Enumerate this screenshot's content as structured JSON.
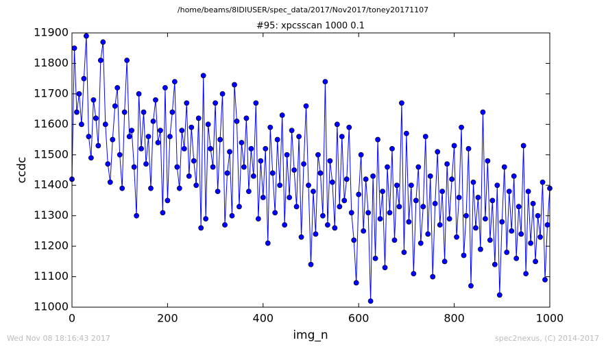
{
  "chart_data": {
    "type": "line",
    "suptitle": "/home/beams/8IDIUSER/spec_data/2017/Nov2017/toney20171107",
    "title": "#95: xpcsscan 1000 0.1",
    "xlabel": "img_n",
    "ylabel": "ccdc",
    "footer_left": "Wed Nov 08 18:16:43 2017",
    "footer_right": "spec2nexus, (C) 2014-2017",
    "color": "#0000ff",
    "marker": "o",
    "xlim": [
      0,
      1000
    ],
    "xticks": [
      0,
      200,
      400,
      600,
      800,
      1000
    ],
    "ylim": [
      11000,
      11900
    ],
    "yticks": [
      11000,
      11100,
      11200,
      11300,
      11400,
      11500,
      11600,
      11700,
      11800,
      11900
    ],
    "x": [
      0,
      5,
      10,
      15,
      20,
      25,
      30,
      35,
      40,
      45,
      50,
      55,
      60,
      65,
      70,
      75,
      80,
      85,
      90,
      95,
      100,
      105,
      110,
      115,
      120,
      125,
      130,
      135,
      140,
      145,
      150,
      155,
      160,
      165,
      170,
      175,
      180,
      185,
      190,
      195,
      200,
      205,
      210,
      215,
      220,
      225,
      230,
      235,
      240,
      245,
      250,
      255,
      260,
      265,
      270,
      275,
      280,
      285,
      290,
      295,
      300,
      305,
      310,
      315,
      320,
      325,
      330,
      335,
      340,
      345,
      350,
      355,
      360,
      365,
      370,
      375,
      380,
      385,
      390,
      395,
      400,
      405,
      410,
      415,
      420,
      425,
      430,
      435,
      440,
      445,
      450,
      455,
      460,
      465,
      470,
      475,
      480,
      485,
      490,
      495,
      500,
      505,
      510,
      515,
      520,
      525,
      530,
      535,
      540,
      545,
      550,
      555,
      560,
      565,
      570,
      575,
      580,
      585,
      590,
      595,
      600,
      605,
      610,
      615,
      620,
      625,
      630,
      635,
      640,
      645,
      650,
      655,
      660,
      665,
      670,
      675,
      680,
      685,
      690,
      695,
      700,
      705,
      710,
      715,
      720,
      725,
      730,
      735,
      740,
      745,
      750,
      755,
      760,
      765,
      770,
      775,
      780,
      785,
      790,
      795,
      800,
      805,
      810,
      815,
      820,
      825,
      830,
      835,
      840,
      845,
      850,
      855,
      860,
      865,
      870,
      875,
      880,
      885,
      890,
      895,
      900,
      905,
      910,
      915,
      920,
      925,
      930,
      935,
      940,
      945,
      950,
      955,
      960,
      965,
      970,
      975,
      980,
      985,
      990,
      995,
      1000
    ],
    "values": [
      11420,
      11850,
      11640,
      11700,
      11600,
      11750,
      11890,
      11560,
      11490,
      11680,
      11620,
      11530,
      11810,
      11870,
      11600,
      11470,
      11410,
      11550,
      11660,
      11720,
      11500,
      11390,
      11640,
      11810,
      11560,
      11580,
      11460,
      11300,
      11700,
      11520,
      11640,
      11470,
      11560,
      11390,
      11610,
      11680,
      11540,
      11580,
      11310,
      11720,
      11350,
      11560,
      11640,
      11740,
      11460,
      11390,
      11580,
      11520,
      11670,
      11430,
      11590,
      11480,
      11400,
      11620,
      11260,
      11760,
      11290,
      11600,
      11520,
      11460,
      11670,
      11380,
      11550,
      11700,
      11270,
      11440,
      11510,
      11300,
      11730,
      11610,
      11330,
      11540,
      11460,
      11620,
      11380,
      11520,
      11430,
      11670,
      11290,
      11480,
      11360,
      11520,
      11210,
      11590,
      11440,
      11310,
      11550,
      11400,
      11630,
      11270,
      11500,
      11360,
      11580,
      11450,
      11330,
      11560,
      11230,
      11470,
      11660,
      11400,
      11140,
      11380,
      11240,
      11500,
      11440,
      11300,
      11740,
      11270,
      11480,
      11410,
      11260,
      11600,
      11330,
      11560,
      11350,
      11420,
      11590,
      11310,
      11220,
      11080,
      11370,
      11500,
      11250,
      11420,
      11310,
      11020,
      11430,
      11160,
      11550,
      11290,
      11380,
      11130,
      11460,
      11310,
      11520,
      11220,
      11400,
      11330,
      11670,
      11180,
      11570,
      11280,
      11400,
      11110,
      11350,
      11460,
      11210,
      11330,
      11560,
      11240,
      11430,
      11100,
      11340,
      11510,
      11270,
      11380,
      11150,
      11470,
      11290,
      11420,
      11530,
      11230,
      11360,
      11590,
      11170,
      11300,
      11520,
      11070,
      11410,
      11260,
      11360,
      11190,
      11640,
      11290,
      11480,
      11220,
      11350,
      11140,
      11400,
      11040,
      11280,
      11460,
      11180,
      11380,
      11250,
      11430,
      11160,
      11330,
      11240,
      11530,
      11110,
      11380,
      11210,
      11340,
      11150,
      11300,
      11230,
      11410,
      11090,
      11270,
      11390
    ]
  }
}
